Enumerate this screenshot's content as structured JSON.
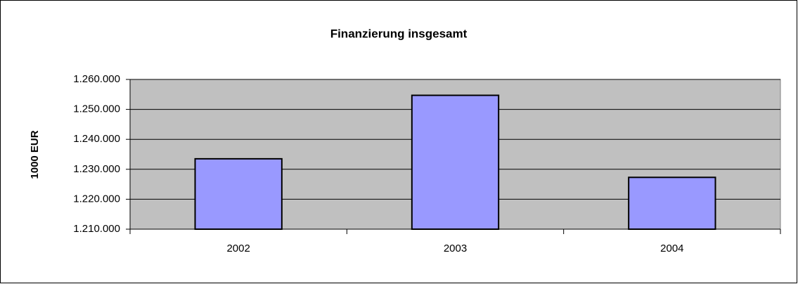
{
  "chart_data": {
    "type": "bar",
    "title": "Finanzierung insgesamt",
    "y_label": "1000 EUR",
    "categories": [
      "2002",
      "2003",
      "2004"
    ],
    "values": [
      1233500,
      1254700,
      1227300
    ],
    "color": "#9999ff",
    "ylim": [
      1210000,
      1260000
    ],
    "yticks": [
      {
        "value": 1210000,
        "label": "1.210.000"
      },
      {
        "value": 1220000,
        "label": "1.220.000"
      },
      {
        "value": 1230000,
        "label": "1.230.000"
      },
      {
        "value": 1240000,
        "label": "1.240.000"
      },
      {
        "value": 1250000,
        "label": "1.250.000"
      },
      {
        "value": 1260000,
        "label": "1.260.000"
      }
    ],
    "grid": true
  }
}
